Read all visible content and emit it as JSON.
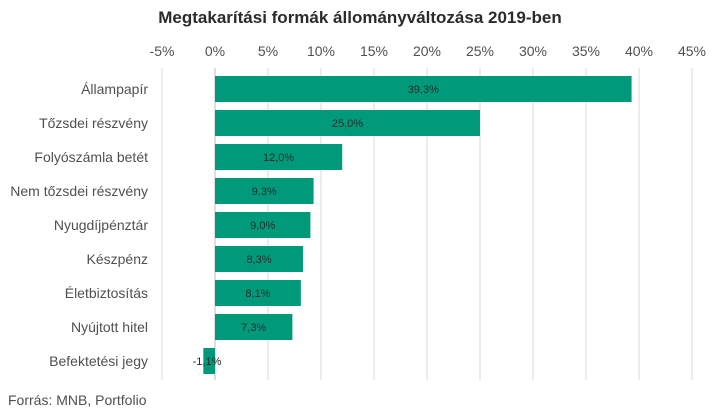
{
  "chart_data": {
    "type": "bar",
    "orientation": "horizontal",
    "title": "Megtakarítási formák állományváltozása 2019-ben",
    "categories": [
      "Állampapír",
      "Tőzsdei részvény",
      "Folyószámla betét",
      "Nem tőzsdei részvény",
      "Nyugdíjpénztár",
      "Készpénz",
      "Életbiztosítás",
      "Nyújtott hitel",
      "Befektetési jegy"
    ],
    "values": [
      39.3,
      25.0,
      12.0,
      9.3,
      9.0,
      8.3,
      8.1,
      7.3,
      -1.1
    ],
    "data_labels": [
      "39,3%",
      "25,0%",
      "12,0%",
      "9,3%",
      "9,0%",
      "8,3%",
      "8,1%",
      "7,3%",
      "-1,1%"
    ],
    "xlim": [
      -5,
      45
    ],
    "x_ticks": [
      -5,
      0,
      5,
      10,
      15,
      20,
      25,
      30,
      35,
      40,
      45
    ],
    "x_tick_labels": [
      "-5%",
      "0%",
      "5%",
      "10%",
      "15%",
      "20%",
      "25%",
      "30%",
      "35%",
      "40%",
      "45%"
    ],
    "x_axis_position": "top",
    "grid": true,
    "bar_color": "#009a7b"
  },
  "source": "Forrás: MNB, Portfolio"
}
